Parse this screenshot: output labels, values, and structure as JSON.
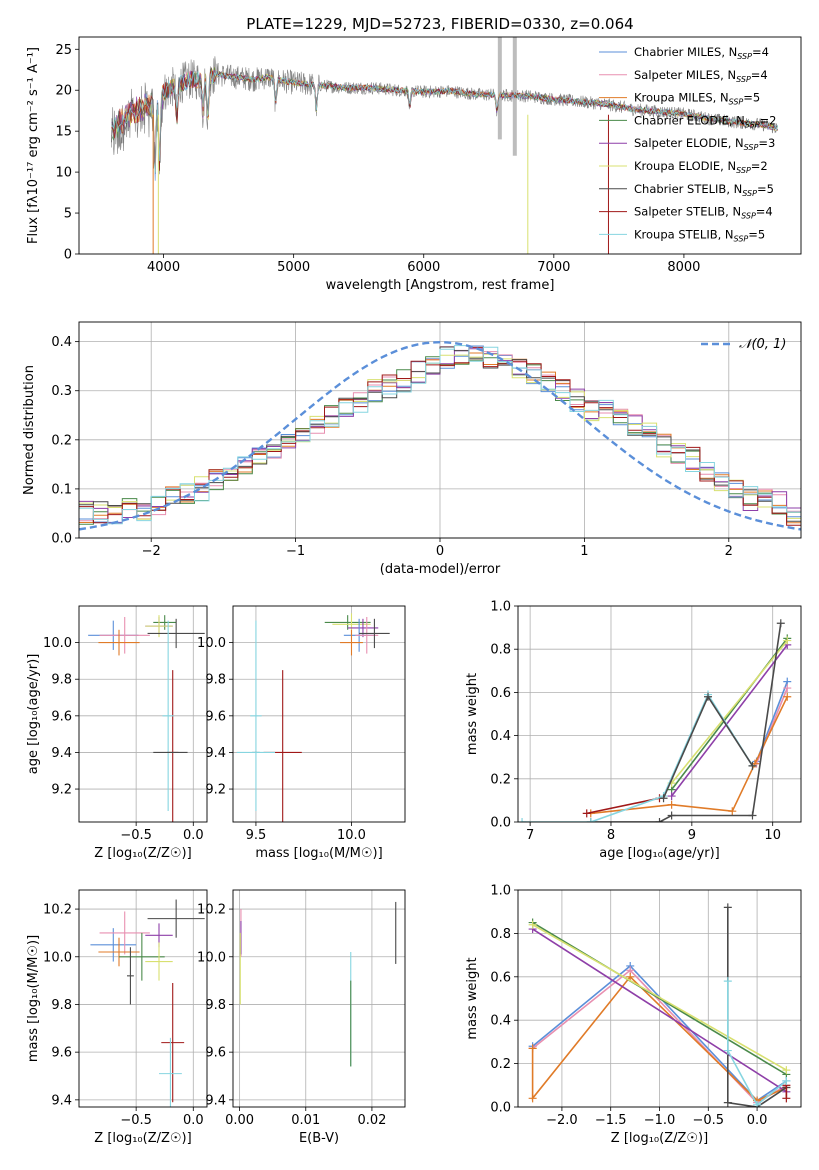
{
  "colors": {
    "chabrier_miles": "#5b8fd9",
    "salpeter_miles": "#e88fb0",
    "kroupa_miles": "#e07b28",
    "chabrier_elodie": "#4a8a4a",
    "salpeter_elodie": "#8e3fa8",
    "kroupa_elodie": "#d8e070",
    "chabrier_stelib": "#4a4a4a",
    "salpeter_stelib": "#a01818",
    "kroupa_stelib": "#86d5e0",
    "gaussian": "#5b8fd9",
    "spectrum_data": "#7f7f7f",
    "grid": "#b0b0b0"
  },
  "chart_data": [
    {
      "id": "spectrum",
      "type": "line",
      "title": "PLATE=1229, MJD=52723, FIBERID=0330, z=0.064",
      "xlabel": "wavelength [Angstrom, rest frame]",
      "ylabel": "Flux [fλ10⁻¹⁷ erg cm⁻² s⁻¹ A⁻¹]",
      "xlim": [
        3350,
        8900
      ],
      "ylim": [
        0,
        26.5
      ],
      "xticks": [
        4000,
        5000,
        6000,
        7000,
        8000
      ],
      "yticks": [
        0,
        5,
        10,
        15,
        20,
        25
      ],
      "grid": false,
      "legend_position": "top-right",
      "continuum": {
        "wavelength": [
          3600,
          3700,
          3800,
          3900,
          4000,
          4100,
          4200,
          4300,
          4400,
          4500,
          4600,
          4700,
          4800,
          4900,
          5000,
          5200,
          5400,
          5600,
          5800,
          6000,
          6200,
          6400,
          6600,
          6800,
          7000,
          7200,
          7400,
          7600,
          7800,
          8000,
          8200,
          8400,
          8600,
          8700
        ],
        "flux": [
          15.8,
          17.0,
          18.0,
          19.0,
          19.8,
          20.6,
          21.3,
          21.2,
          22.0,
          21.7,
          21.5,
          21.3,
          21.6,
          21.2,
          20.9,
          20.6,
          20.3,
          20.3,
          20.0,
          19.8,
          19.9,
          19.5,
          19.4,
          19.3,
          18.9,
          18.6,
          18.3,
          17.7,
          17.4,
          17.1,
          16.5,
          16.1,
          15.8,
          15.4
        ]
      },
      "legend": [
        "Chabrier MILES, N_SSP=4",
        "Salpeter MILES, N_SSP=4",
        "Kroupa MILES, N_SSP=5",
        "Chabrier ELODIE, N_SSP=2",
        "Salpeter ELODIE, N_SSP=3",
        "Kroupa ELODIE, N_SSP=2",
        "Chabrier STELIB, N_SSP=5",
        "Salpeter STELIB, N_SSP=4",
        "Kroupa STELIB, N_SSP=5"
      ],
      "legend_keys": [
        "chabrier_miles",
        "salpeter_miles",
        "kroupa_miles",
        "chabrier_elodie",
        "salpeter_elodie",
        "kroupa_elodie",
        "chabrier_stelib",
        "salpeter_stelib",
        "kroupa_stelib"
      ]
    },
    {
      "id": "residuals",
      "type": "histogram",
      "xlabel": "(data-model)/error",
      "ylabel": "Normed distribution",
      "xlim": [
        -2.5,
        2.5
      ],
      "ylim": [
        0,
        0.44
      ],
      "xticks": [
        -2,
        -1,
        0,
        1,
        2
      ],
      "yticks": [
        0.0,
        0.1,
        0.2,
        0.3,
        0.4
      ],
      "grid": true,
      "bin_width": 0.1,
      "gaussian_label": "𝒩(0, 1)",
      "legend_position": "top-right",
      "histogram_base": [
        0.05,
        0.05,
        0.05,
        0.06,
        0.06,
        0.07,
        0.08,
        0.09,
        0.1,
        0.12,
        0.13,
        0.15,
        0.16,
        0.18,
        0.19,
        0.21,
        0.23,
        0.25,
        0.26,
        0.28,
        0.3,
        0.31,
        0.32,
        0.34,
        0.35,
        0.37,
        0.37,
        0.38,
        0.37,
        0.36,
        0.35,
        0.33,
        0.32,
        0.3,
        0.28,
        0.26,
        0.26,
        0.25,
        0.23,
        0.22,
        0.19,
        0.17,
        0.16,
        0.14,
        0.12,
        0.1,
        0.08,
        0.08,
        0.07,
        0.05
      ]
    },
    {
      "id": "age_vs_z",
      "type": "errorbar",
      "xlabel": "Z [log₁₀(Z/Z☉)]",
      "ylabel": "age  [log₁₀(age/yr)]",
      "xlim": [
        -1.0,
        0.12
      ],
      "ylim": [
        9.02,
        10.2
      ],
      "xticks": [
        -0.5,
        0.0
      ],
      "yticks": [
        9.2,
        9.4,
        9.6,
        9.8,
        10.0
      ],
      "grid": true,
      "points": [
        {
          "model": "chabrier_miles",
          "x": -0.7,
          "xerr": 0.22,
          "y": 10.04,
          "yerr": 0.08
        },
        {
          "model": "salpeter_miles",
          "x": -0.6,
          "xerr": 0.22,
          "y": 10.04,
          "yerr": 0.1
        },
        {
          "model": "kroupa_miles",
          "x": -0.65,
          "xerr": 0.18,
          "y": 10.0,
          "yerr": 0.07
        },
        {
          "model": "chabrier_elodie",
          "x": -0.25,
          "xerr": 0.1,
          "y": 10.11,
          "yerr": 0.04
        },
        {
          "model": "salpeter_elodie",
          "x": -0.3,
          "xerr": 0.12,
          "y": 10.09,
          "yerr": 0.05
        },
        {
          "model": "kroupa_elodie",
          "x": -0.3,
          "xerr": 0.12,
          "y": 10.09,
          "yerr": 0.06
        },
        {
          "model": "chabrier_stelib",
          "x": -0.15,
          "xerr": 0.25,
          "y": 10.05,
          "yerr": 0.08
        },
        {
          "model": "salpeter_stelib",
          "x": -0.18,
          "xerr": 0.05,
          "y": 9.4,
          "yerr": 0.45
        },
        {
          "model": "kroupa_stelib",
          "x": -0.22,
          "xerr": 0.05,
          "y": 9.6,
          "yerr": 0.52
        },
        {
          "model": "chabrier_stelib",
          "x": -0.2,
          "xerr": 0.15,
          "y": 9.4,
          "yerr": 0.0
        }
      ]
    },
    {
      "id": "age_vs_mass",
      "type": "errorbar",
      "xlabel": "mass [log₁₀(M/M☉)]",
      "ylabel": "",
      "xlim": [
        9.38,
        10.28
      ],
      "ylim": [
        9.02,
        10.2
      ],
      "xticks": [
        9.5,
        10.0
      ],
      "yticks": [
        9.2,
        9.4,
        9.6,
        9.8,
        10.0
      ],
      "grid": true,
      "points": [
        {
          "model": "chabrier_elodie",
          "x": 9.98,
          "xerr": 0.12,
          "y": 10.11,
          "yerr": 0.04
        },
        {
          "model": "kroupa_elodie",
          "x": 10.0,
          "xerr": 0.1,
          "y": 10.1,
          "yerr": 0.06
        },
        {
          "model": "salpeter_elodie",
          "x": 10.06,
          "xerr": 0.08,
          "y": 10.08,
          "yerr": 0.05
        },
        {
          "model": "chabrier_miles",
          "x": 10.04,
          "xerr": 0.08,
          "y": 10.04,
          "yerr": 0.09
        },
        {
          "model": "salpeter_miles",
          "x": 10.08,
          "xerr": 0.06,
          "y": 10.04,
          "yerr": 0.1
        },
        {
          "model": "kroupa_miles",
          "x": 10.0,
          "xerr": 0.06,
          "y": 10.0,
          "yerr": 0.07
        },
        {
          "model": "chabrier_stelib",
          "x": 10.12,
          "xerr": 0.08,
          "y": 10.05,
          "yerr": 0.08
        },
        {
          "model": "salpeter_stelib",
          "x": 9.64,
          "xerr": 0.1,
          "y": 9.4,
          "yerr": 0.45
        },
        {
          "model": "kroupa_stelib",
          "x": 9.5,
          "xerr": 0.03,
          "y": 9.6,
          "yerr": 0.52
        },
        {
          "model": "chabrier_stelib",
          "x": 9.5,
          "xerr": 0.02,
          "y": 9.4,
          "yerr": 0.0
        },
        {
          "model": "kroupa_stelib",
          "x": 9.5,
          "xerr": 0.1,
          "y": 9.4,
          "yerr": 0.0
        }
      ]
    },
    {
      "id": "weight_vs_age",
      "type": "line",
      "xlabel": "age  [log₁₀(age/yr)]",
      "ylabel": "mass weight",
      "xlim": [
        6.85,
        10.35
      ],
      "ylim": [
        0,
        1
      ],
      "xticks": [
        7,
        8,
        9,
        10
      ],
      "yticks": [
        0.0,
        0.2,
        0.4,
        0.6,
        0.8,
        1.0
      ],
      "grid": true,
      "series": [
        {
          "model": "chabrier_miles",
          "x": [
            9.8,
            10.18
          ],
          "y": [
            0.28,
            0.65
          ]
        },
        {
          "model": "salpeter_miles",
          "x": [
            9.8,
            10.18
          ],
          "y": [
            0.27,
            0.62
          ]
        },
        {
          "model": "kroupa_miles",
          "x": [
            7.75,
            8.75,
            9.5,
            9.78,
            10.18
          ],
          "y": [
            0.04,
            0.08,
            0.05,
            0.27,
            0.58
          ]
        },
        {
          "model": "chabrier_elodie",
          "x": [
            8.75,
            10.18
          ],
          "y": [
            0.15,
            0.85
          ]
        },
        {
          "model": "salpeter_elodie",
          "x": [
            8.75,
            10.18
          ],
          "y": [
            0.12,
            0.82
          ]
        },
        {
          "model": "kroupa_elodie",
          "x": [
            8.75,
            10.18
          ],
          "y": [
            0.18,
            0.84
          ]
        },
        {
          "model": "chabrier_stelib",
          "x": [
            7.75,
            8.6,
            8.75,
            9.75,
            10.1
          ],
          "y": [
            0.0,
            0.0,
            0.03,
            0.03,
            0.92
          ]
        },
        {
          "model": "salpeter_stelib",
          "x": [
            7.7,
            8.6
          ],
          "y": [
            0.04,
            0.11
          ]
        },
        {
          "model": "kroupa_stelib",
          "x": [
            6.9,
            7.75,
            8.65,
            9.2,
            9.75
          ],
          "y": [
            0.0,
            0.0,
            0.12,
            0.59,
            0.26
          ]
        },
        {
          "model": "chabrier_stelib",
          "x": [
            8.65,
            9.2,
            9.75
          ],
          "y": [
            0.11,
            0.58,
            0.26
          ]
        }
      ]
    },
    {
      "id": "mass_vs_z",
      "type": "errorbar",
      "xlabel": "Z [log₁₀(Z/Z☉)]",
      "ylabel": "mass [log₁₀(M/M☉)]",
      "xlim": [
        -1.0,
        0.12
      ],
      "ylim": [
        9.37,
        10.28
      ],
      "xticks": [
        -0.5,
        0.0
      ],
      "yticks": [
        9.4,
        9.6,
        9.8,
        10.0,
        10.2
      ],
      "grid": true,
      "points": [
        {
          "model": "chabrier_miles",
          "x": -0.7,
          "xerr": 0.2,
          "y": 10.05,
          "yerr": 0.07
        },
        {
          "model": "salpeter_miles",
          "x": -0.6,
          "xerr": 0.22,
          "y": 10.1,
          "yerr": 0.09
        },
        {
          "model": "kroupa_miles",
          "x": -0.65,
          "xerr": 0.18,
          "y": 10.02,
          "yerr": 0.06
        },
        {
          "model": "chabrier_elodie",
          "x": -0.45,
          "xerr": 0.2,
          "y": 10.0,
          "yerr": 0.1
        },
        {
          "model": "salpeter_elodie",
          "x": -0.3,
          "xerr": 0.12,
          "y": 10.09,
          "yerr": 0.05
        },
        {
          "model": "kroupa_elodie",
          "x": -0.3,
          "xerr": 0.12,
          "y": 9.98,
          "yerr": 0.08
        },
        {
          "model": "chabrier_stelib",
          "x": -0.15,
          "xerr": 0.25,
          "y": 10.16,
          "yerr": 0.08
        },
        {
          "model": "salpeter_stelib",
          "x": -0.18,
          "xerr": 0.1,
          "y": 9.64,
          "yerr": 0.25
        },
        {
          "model": "kroupa_stelib",
          "x": -0.2,
          "xerr": 0.1,
          "y": 9.51,
          "yerr": 0.15
        },
        {
          "model": "chabrier_stelib",
          "x": -0.55,
          "xerr": 0.03,
          "y": 9.92,
          "yerr": 0.12
        }
      ]
    },
    {
      "id": "mass_vs_ebv",
      "type": "errorbar",
      "xlabel": "E(B-V)",
      "ylabel": "",
      "xlim": [
        -0.001,
        0.025
      ],
      "ylim": [
        9.37,
        10.28
      ],
      "xticks": [
        0.0,
        0.01,
        0.02
      ],
      "yticks": [
        9.4,
        9.6,
        9.8,
        10.0,
        10.2
      ],
      "grid": true,
      "points": [
        {
          "model": "salpeter_miles",
          "x": 0.0002,
          "xerr": 0.0,
          "y": 10.1,
          "yerr": 0.1
        },
        {
          "model": "salpeter_elodie",
          "x": 0.0002,
          "xerr": 0.0,
          "y": 10.08,
          "yerr": 0.07
        },
        {
          "model": "kroupa_elodie",
          "x": 0.0001,
          "xerr": 0.0,
          "y": 9.95,
          "yerr": 0.15
        },
        {
          "model": "chabrier_stelib",
          "x": 0.0236,
          "xerr": 0.0,
          "y": 10.1,
          "yerr": 0.13
        },
        {
          "model": "kroupa_stelib",
          "x": 0.0168,
          "xerr": 0.0,
          "y": 9.78,
          "yerr": 0.24
        },
        {
          "model": "chabrier_elodie",
          "x": 0.0168,
          "xerr": 0.0,
          "y": 9.72,
          "yerr": 0.18
        }
      ]
    },
    {
      "id": "weight_vs_z",
      "type": "line",
      "xlabel": "Z [log₁₀(Z/Z☉)]",
      "ylabel": "mass weight",
      "xlim": [
        -2.45,
        0.45
      ],
      "ylim": [
        0,
        1
      ],
      "xticks": [
        -2.0,
        -1.5,
        -1.0,
        -0.5,
        0.0
      ],
      "yticks": [
        0.0,
        0.2,
        0.4,
        0.6,
        0.8,
        1.0
      ],
      "grid": true,
      "series": [
        {
          "model": "chabrier_miles",
          "x": [
            -2.3,
            -1.3,
            0.0,
            0.3
          ],
          "y": [
            0.28,
            0.65,
            0.03,
            0.12
          ]
        },
        {
          "model": "salpeter_miles",
          "x": [
            -2.3,
            -1.3,
            0.0,
            0.3
          ],
          "y": [
            0.27,
            0.63,
            0.02,
            0.1
          ]
        },
        {
          "model": "kroupa_miles",
          "x": [
            -2.3,
            -2.3,
            -1.3,
            0.0,
            0.3
          ],
          "y": [
            0.27,
            0.04,
            0.6,
            0.03,
            0.09
          ]
        },
        {
          "model": "chabrier_elodie",
          "x": [
            -2.3,
            0.3
          ],
          "y": [
            0.85,
            0.15
          ]
        },
        {
          "model": "salpeter_elodie",
          "x": [
            -2.3,
            0.3
          ],
          "y": [
            0.82,
            0.07
          ]
        },
        {
          "model": "kroupa_elodie",
          "x": [
            -2.3,
            0.3
          ],
          "y": [
            0.84,
            0.17
          ]
        },
        {
          "model": "chabrier_stelib",
          "x": [
            -0.3,
            -0.3,
            0.0,
            0.3
          ],
          "y": [
            0.92,
            0.02,
            0.0,
            0.09
          ]
        },
        {
          "model": "salpeter_stelib",
          "x": [
            0.3,
            0.3
          ],
          "y": [
            0.04,
            0.1
          ]
        },
        {
          "model": "kroupa_stelib",
          "x": [
            -0.3,
            -0.3,
            0.0,
            0.3
          ],
          "y": [
            0.58,
            0.26,
            0.01,
            0.12
          ]
        }
      ]
    }
  ]
}
